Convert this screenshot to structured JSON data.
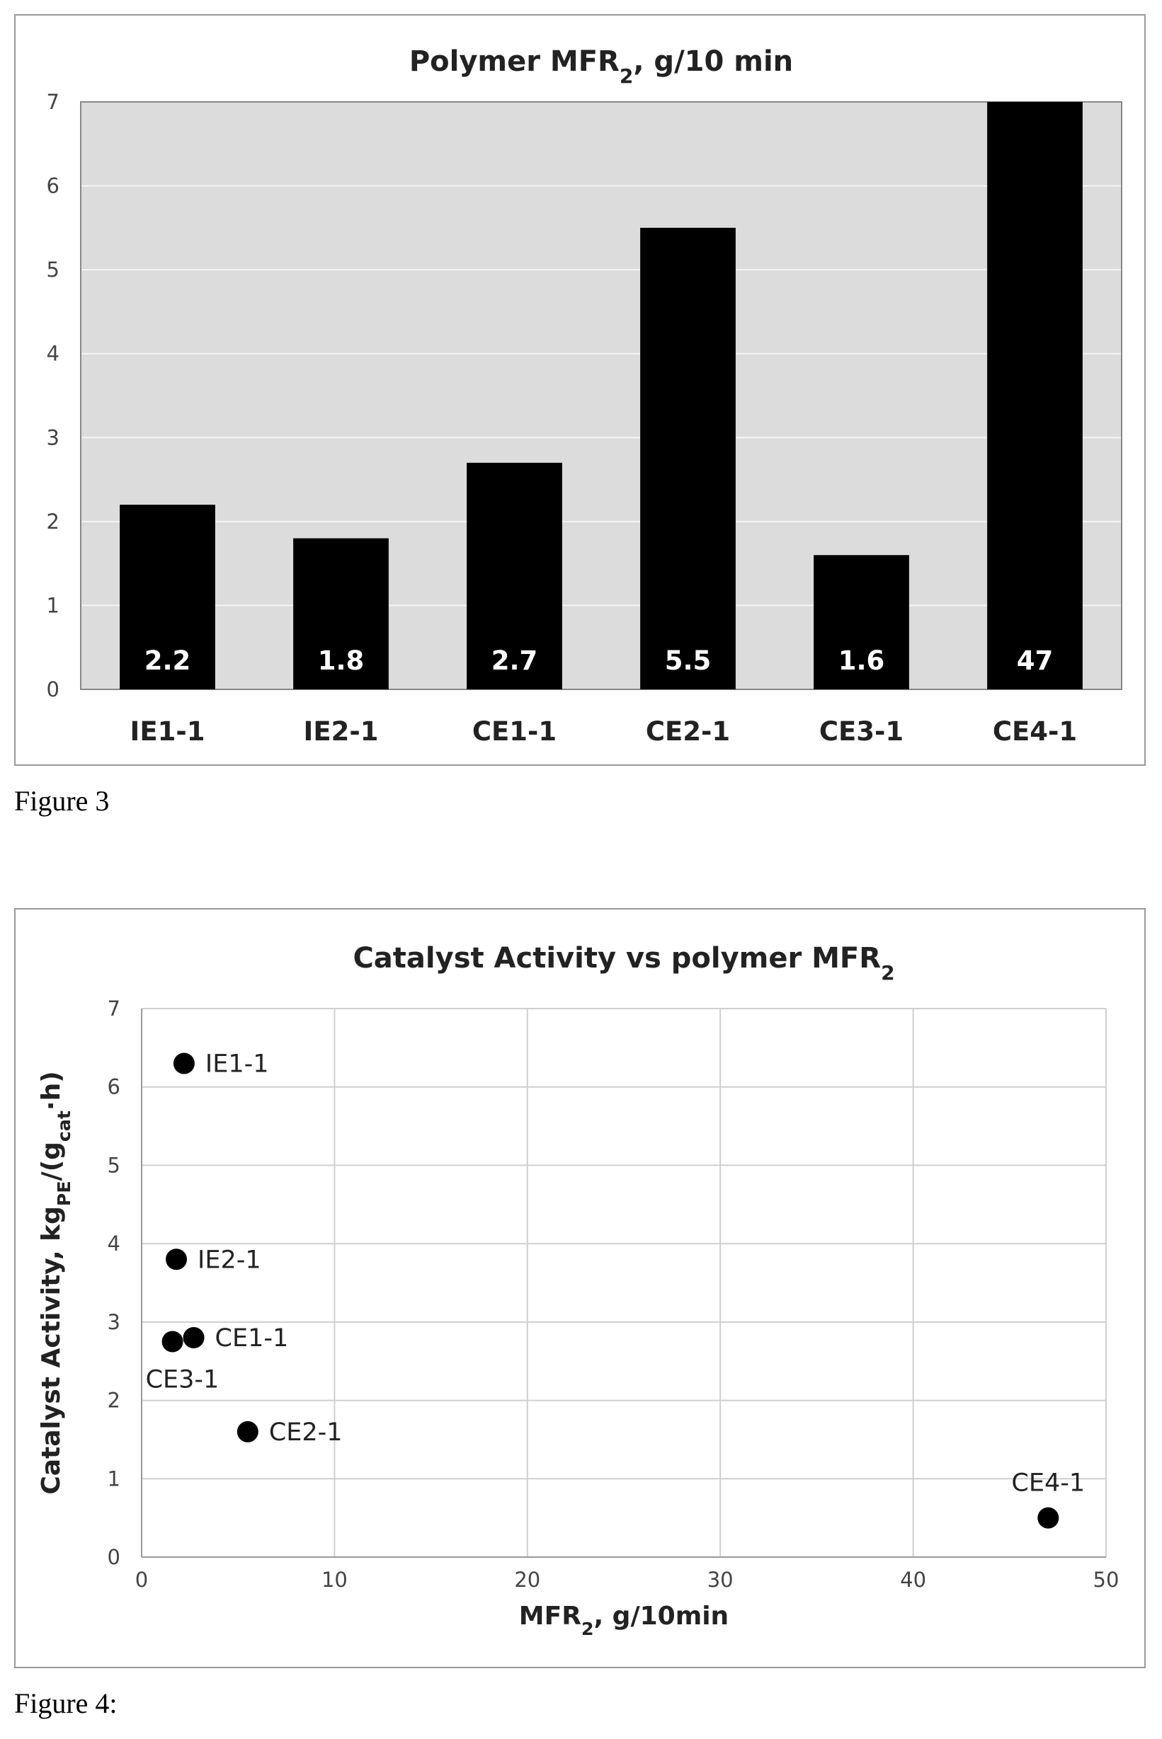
{
  "figures": [
    {
      "caption": "Figure 3",
      "chart_data": {
        "type": "bar",
        "title": "Polymer MFR",
        "title_sub": "2",
        "title_suffix": ", g/10 min",
        "categories": [
          "IE1-1",
          "IE2-1",
          "CE1-1",
          "CE2-1",
          "CE3-1",
          "CE4-1"
        ],
        "values": [
          2.2,
          1.8,
          2.7,
          5.5,
          1.6,
          47
        ],
        "data_labels": [
          "2.2",
          "1.8",
          "2.7",
          "5.5",
          "1.6",
          "47"
        ],
        "ylim": [
          0,
          7
        ],
        "yticks": [
          0,
          1,
          2,
          3,
          4,
          5,
          6,
          7
        ],
        "grid": true,
        "bar_color": "#000000",
        "plot_background": "#dcdcdc"
      }
    },
    {
      "caption": "Figure 4:",
      "chart_data": {
        "type": "scatter",
        "title": "Catalyst Activity vs polymer MFR",
        "title_sub": "2",
        "xlabel": "MFR",
        "xlabel_sub": "2",
        "xlabel_suffix": ", g/10min",
        "ylabel_parts": [
          "Catalyst Activity, kg",
          "PE",
          "/(g",
          "cat",
          "·h)"
        ],
        "xlim": [
          0,
          50
        ],
        "ylim": [
          0,
          7
        ],
        "xticks": [
          0,
          10,
          20,
          30,
          40,
          50
        ],
        "yticks": [
          0,
          1,
          2,
          3,
          4,
          5,
          6,
          7
        ],
        "grid": true,
        "marker_color": "#000000",
        "points": [
          {
            "label": "IE1-1",
            "x": 2.2,
            "y": 6.3,
            "label_pos": "right"
          },
          {
            "label": "IE2-1",
            "x": 1.8,
            "y": 3.8,
            "label_pos": "right"
          },
          {
            "label": "CE1-1",
            "x": 2.7,
            "y": 2.8,
            "label_pos": "right"
          },
          {
            "label": "CE3-1",
            "x": 1.6,
            "y": 2.75,
            "label_pos": "below"
          },
          {
            "label": "CE2-1",
            "x": 5.5,
            "y": 1.6,
            "label_pos": "right"
          },
          {
            "label": "CE4-1",
            "x": 47,
            "y": 0.5,
            "label_pos": "above"
          }
        ]
      }
    }
  ]
}
